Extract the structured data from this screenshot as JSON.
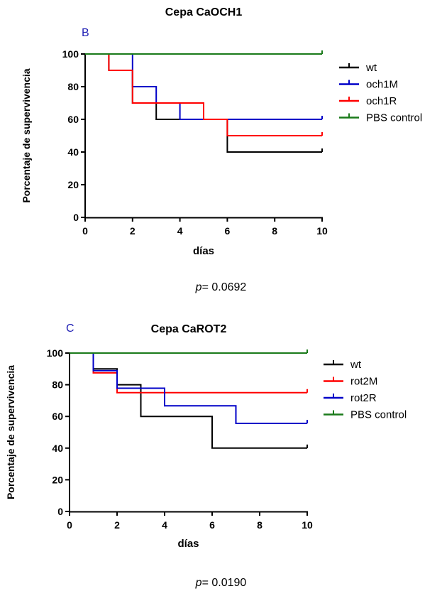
{
  "pvalues": [
    {
      "label": "p",
      "text": "= 0.0692"
    },
    {
      "label": "p",
      "text": "= 0.0190"
    }
  ],
  "chart_data": [
    {
      "type": "line",
      "step": true,
      "panel_letter": "B",
      "title": "Cepa CaOCH1",
      "xlabel": "días",
      "ylabel": "Porcentaje de supervivencia",
      "xlim": [
        0,
        10
      ],
      "ylim": [
        0,
        100
      ],
      "xticks": [
        "0",
        "2",
        "4",
        "6",
        "8",
        "10"
      ],
      "yticks": [
        "0",
        "20",
        "40",
        "60",
        "80",
        "100"
      ],
      "legend_position": "right",
      "series": [
        {
          "name": "wt",
          "color": "#000000",
          "x": [
            0,
            1,
            2,
            3,
            6,
            10
          ],
          "y": [
            100,
            90,
            70,
            60,
            40,
            40
          ]
        },
        {
          "name": "och1M",
          "color": "#0000c8",
          "x": [
            0,
            2,
            3,
            4,
            10
          ],
          "y": [
            100,
            80,
            70,
            60,
            60
          ]
        },
        {
          "name": "och1R",
          "color": "#ff0000",
          "x": [
            0,
            1,
            2,
            5,
            6,
            10
          ],
          "y": [
            100,
            90,
            70,
            60,
            50,
            50
          ]
        },
        {
          "name": "PBS control",
          "color": "#1a7a1a",
          "x": [
            0,
            10
          ],
          "y": [
            100,
            100
          ]
        }
      ]
    },
    {
      "type": "line",
      "step": true,
      "panel_letter": "C",
      "title": "Cepa CaROT2",
      "xlabel": "días",
      "ylabel": "Porcentaje de supervivencia",
      "xlim": [
        0,
        10
      ],
      "ylim": [
        0,
        100
      ],
      "xticks": [
        "0",
        "2",
        "4",
        "6",
        "8",
        "10"
      ],
      "yticks": [
        "0",
        "20",
        "40",
        "60",
        "80",
        "100"
      ],
      "legend_position": "right",
      "series": [
        {
          "name": "wt",
          "color": "#000000",
          "x": [
            0,
            1,
            2,
            3,
            6,
            10
          ],
          "y": [
            100,
            90,
            80,
            60,
            40,
            40
          ]
        },
        {
          "name": "rot2M",
          "color": "#ff0000",
          "x": [
            0,
            1,
            2,
            10
          ],
          "y": [
            100,
            87.5,
            75,
            75
          ]
        },
        {
          "name": "rot2R",
          "color": "#0000c8",
          "x": [
            0,
            1,
            2,
            4,
            7,
            10
          ],
          "y": [
            100,
            88.9,
            77.8,
            66.7,
            55.6,
            55.6
          ]
        },
        {
          "name": "PBS control",
          "color": "#1a7a1a",
          "x": [
            0,
            10
          ],
          "y": [
            100,
            100
          ]
        }
      ]
    }
  ]
}
